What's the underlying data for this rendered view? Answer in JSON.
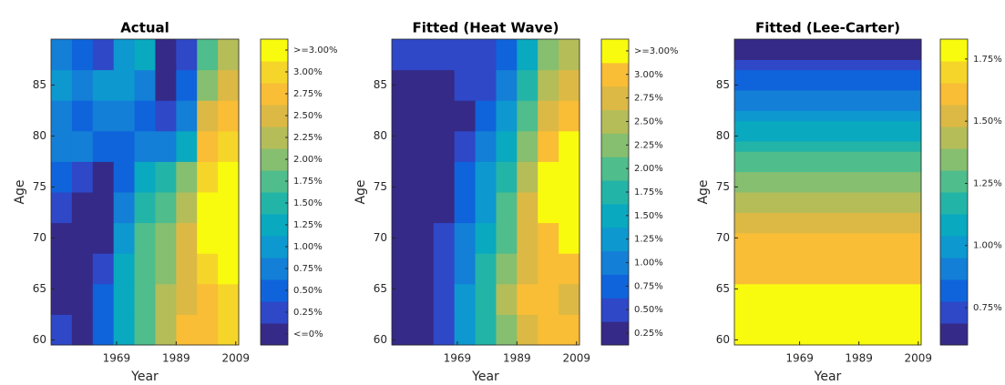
{
  "chart_data": [
    {
      "type": "heatmap",
      "title": "Actual",
      "xlabel": "Year",
      "ylabel": "Age",
      "xlim": [
        1947,
        2010
      ],
      "xticks": [
        1969,
        1989,
        2009
      ],
      "ylim": [
        59.5,
        89.5
      ],
      "yticks": [
        60,
        65,
        70,
        75,
        80,
        85
      ],
      "xbins": [
        1947,
        1954,
        1961,
        1968,
        1975,
        1982,
        1989,
        1996,
        2003,
        2010
      ],
      "ybins": [
        59.5,
        62.5,
        65.5,
        68.5,
        71.5,
        74.5,
        77.5,
        80.5,
        83.5,
        86.5,
        89.5
      ],
      "z": [
        [
          0.25,
          0,
          0.5,
          1.25,
          1.75,
          2.25,
          2.75,
          2.75,
          3.0
        ],
        [
          0,
          0,
          0.5,
          1.25,
          1.75,
          2.25,
          2.5,
          2.75,
          3.0
        ],
        [
          0,
          0,
          0.25,
          1.25,
          1.75,
          2.0,
          2.5,
          3.0,
          3.25
        ],
        [
          0,
          0,
          0,
          1.0,
          1.75,
          2.0,
          2.5,
          3.25,
          3.25
        ],
        [
          0.25,
          0,
          0,
          0.75,
          1.5,
          1.75,
          2.25,
          3.25,
          3.25
        ],
        [
          0.5,
          0.25,
          0,
          0.5,
          1.25,
          1.5,
          2.0,
          3.0,
          3.25
        ],
        [
          0.75,
          0.75,
          0.5,
          0.5,
          0.75,
          0.75,
          1.25,
          2.75,
          3.0
        ],
        [
          0.75,
          0.5,
          0.75,
          0.75,
          0.5,
          0.25,
          0.75,
          2.5,
          2.75
        ],
        [
          1.0,
          0.75,
          1.0,
          1.0,
          0.75,
          0,
          0.5,
          2.0,
          2.5
        ],
        [
          0.75,
          0.5,
          0.25,
          1.0,
          1.25,
          0,
          0.25,
          1.75,
          2.25
        ]
      ],
      "clim": [
        -0.125,
        3.375
      ],
      "cticks": [
        {
          "value": 0,
          "label": "<=0%"
        },
        {
          "value": 0.25,
          "label": "0.25%"
        },
        {
          "value": 0.5,
          "label": "0.50%"
        },
        {
          "value": 0.75,
          "label": "0.75%"
        },
        {
          "value": 1.0,
          "label": "1.00%"
        },
        {
          "value": 1.25,
          "label": "1.25%"
        },
        {
          "value": 1.5,
          "label": "1.50%"
        },
        {
          "value": 1.75,
          "label": "1.75%"
        },
        {
          "value": 2.0,
          "label": "2.00%"
        },
        {
          "value": 2.25,
          "label": "2.25%"
        },
        {
          "value": 2.5,
          "label": "2.50%"
        },
        {
          "value": 2.75,
          "label": "2.75%"
        },
        {
          "value": 3.0,
          "label": "3.00%"
        },
        {
          "value": 3.25,
          "label": ">=3.00%"
        }
      ],
      "colormap": [
        "#352a87",
        "#2e48c8",
        "#0f64dc",
        "#137fd6",
        "#0d98d0",
        "#09a9c0",
        "#23b4a8",
        "#4fbd8c",
        "#86bf6f",
        "#b5bd59",
        "#dcb944",
        "#f9bd36",
        "#f6d52a",
        "#f9fb0e"
      ]
    },
    {
      "type": "heatmap",
      "title": "Fitted (Heat Wave)",
      "xlabel": "Year",
      "ylabel": "Age",
      "xlim": [
        1947,
        2010
      ],
      "xticks": [
        1969,
        1989,
        2009
      ],
      "ylim": [
        59.5,
        89.5
      ],
      "yticks": [
        60,
        65,
        70,
        75,
        80,
        85
      ],
      "xbins": [
        1947,
        1954,
        1961,
        1968,
        1975,
        1982,
        1989,
        1996,
        2003,
        2010
      ],
      "ybins": [
        59.5,
        62.5,
        65.5,
        68.5,
        71.5,
        74.5,
        77.5,
        80.5,
        83.5,
        86.5,
        89.5
      ],
      "z": [
        [
          0.25,
          0.25,
          0.5,
          1.25,
          1.75,
          2.25,
          2.75,
          3.0,
          3.0
        ],
        [
          0.25,
          0.25,
          0.5,
          1.25,
          1.75,
          2.5,
          3.0,
          3.0,
          2.75
        ],
        [
          0.25,
          0.25,
          0.5,
          1.0,
          1.75,
          2.25,
          2.75,
          3.0,
          3.0
        ],
        [
          0.25,
          0.25,
          0.5,
          1.0,
          1.5,
          2.0,
          2.75,
          3.0,
          3.25
        ],
        [
          0.25,
          0.25,
          0.25,
          0.75,
          1.25,
          2.0,
          2.75,
          3.25,
          3.25
        ],
        [
          0.25,
          0.25,
          0.25,
          0.75,
          1.25,
          1.75,
          2.5,
          3.25,
          3.25
        ],
        [
          0.25,
          0.25,
          0.25,
          0.5,
          1.0,
          1.5,
          2.25,
          3.0,
          3.25
        ],
        [
          0.25,
          0.25,
          0.25,
          0.25,
          0.75,
          1.25,
          2.0,
          2.75,
          3.0
        ],
        [
          0.25,
          0.25,
          0.25,
          0.5,
          0.5,
          1.0,
          1.75,
          2.5,
          2.75
        ],
        [
          0.5,
          0.5,
          0.5,
          0.5,
          0.5,
          0.75,
          1.5,
          2.25,
          2.5
        ]
      ],
      "clim": [
        0.125,
        3.375
      ],
      "cticks": [
        {
          "value": 0.25,
          "label": "0.25%"
        },
        {
          "value": 0.5,
          "label": "0.50%"
        },
        {
          "value": 0.75,
          "label": "0.75%"
        },
        {
          "value": 1.0,
          "label": "1.00%"
        },
        {
          "value": 1.25,
          "label": "1.25%"
        },
        {
          "value": 1.5,
          "label": "1.50%"
        },
        {
          "value": 1.75,
          "label": "1.75%"
        },
        {
          "value": 2.0,
          "label": "2.00%"
        },
        {
          "value": 2.25,
          "label": "2.25%"
        },
        {
          "value": 2.5,
          "label": "2.50%"
        },
        {
          "value": 2.75,
          "label": "2.75%"
        },
        {
          "value": 3.0,
          "label": "3.00%"
        },
        {
          "value": 3.25,
          "label": ">=3.00%"
        }
      ],
      "colormap": [
        "#352a87",
        "#2e48c8",
        "#0f64dc",
        "#137fd6",
        "#0d98d0",
        "#09a9c0",
        "#23b4a8",
        "#4fbd8c",
        "#86bf6f",
        "#b5bd59",
        "#dcb944",
        "#f9bd36",
        "#f9fb0e"
      ]
    },
    {
      "type": "heatmap",
      "title": "Fitted (Lee-Carter)",
      "xlabel": "Year",
      "ylabel": "Age",
      "xlim": [
        1947,
        2010
      ],
      "xticks": [
        1969,
        1989,
        2009
      ],
      "ylim": [
        59.5,
        89.5
      ],
      "yticks": [
        60,
        65,
        70,
        75,
        80,
        85
      ],
      "xbins": [
        1947,
        2010
      ],
      "ybins": [
        59.5,
        60.5,
        61.5,
        62.5,
        63.5,
        64.5,
        65.5,
        66.5,
        67.5,
        68.5,
        69.5,
        70.5,
        71.5,
        72.5,
        73.5,
        74.5,
        75.5,
        76.5,
        77.5,
        78.5,
        79.5,
        80.5,
        81.5,
        82.5,
        83.5,
        84.5,
        85.5,
        86.5,
        87.5,
        88.5,
        89.5
      ],
      "z": [
        [
          1.8
        ],
        [
          1.8
        ],
        [
          1.8
        ],
        [
          1.8
        ],
        [
          1.75
        ],
        [
          1.8
        ],
        [
          1.65
        ],
        [
          1.65
        ],
        [
          1.65
        ],
        [
          1.65
        ],
        [
          1.6
        ],
        [
          1.55
        ],
        [
          1.5
        ],
        [
          1.45
        ],
        [
          1.4
        ],
        [
          1.35
        ],
        [
          1.35
        ],
        [
          1.3
        ],
        [
          1.25
        ],
        [
          1.2
        ],
        [
          1.1
        ],
        [
          1.05
        ],
        [
          1.0
        ],
        [
          0.95
        ],
        [
          0.95
        ],
        [
          0.85
        ],
        [
          0.8
        ],
        [
          0.7
        ],
        [
          0.62
        ],
        [
          0.62
        ]
      ],
      "clim": [
        0.6,
        1.83
      ],
      "cticks": [
        {
          "value": 0.75,
          "label": "0.75%"
        },
        {
          "value": 1.0,
          "label": "1.00%"
        },
        {
          "value": 1.25,
          "label": "1.25%"
        },
        {
          "value": 1.5,
          "label": "1.50%"
        },
        {
          "value": 1.75,
          "label": "1.75%"
        }
      ],
      "colormap": [
        "#352a87",
        "#2e48c8",
        "#0f64dc",
        "#137fd6",
        "#0d98d0",
        "#09a9c0",
        "#23b4a8",
        "#4fbd8c",
        "#86bf6f",
        "#b5bd59",
        "#dcb944",
        "#f9bd36",
        "#f6d52a",
        "#f9fb0e"
      ]
    }
  ]
}
